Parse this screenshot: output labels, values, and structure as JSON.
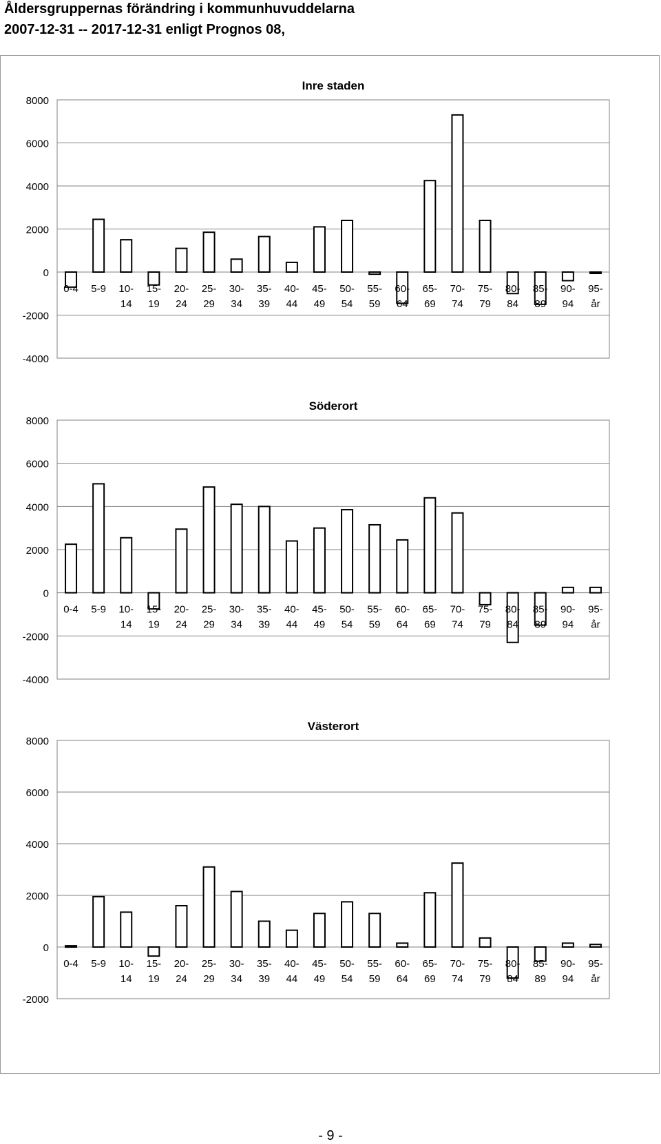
{
  "document": {
    "title_line1": "Åldersgruppernas  förändring  i  kommunhuvuddelarna",
    "title_line2": "2007-12-31 -- 2017-12-31   enligt  Prognos 08,",
    "page_number": "- 9 -"
  },
  "chart_data": [
    {
      "type": "bar",
      "title": "Inre staden",
      "categories": [
        [
          "0-4",
          ""
        ],
        [
          "5-9",
          ""
        ],
        [
          "10-",
          "14"
        ],
        [
          "15-",
          "19"
        ],
        [
          "20-",
          "24"
        ],
        [
          "25-",
          "29"
        ],
        [
          "30-",
          "34"
        ],
        [
          "35-",
          "39"
        ],
        [
          "40-",
          "44"
        ],
        [
          "45-",
          "49"
        ],
        [
          "50-",
          "54"
        ],
        [
          "55-",
          "59"
        ],
        [
          "60-",
          "64"
        ],
        [
          "65-",
          "69"
        ],
        [
          "70-",
          "74"
        ],
        [
          "75-",
          "79"
        ],
        [
          "80-",
          "84"
        ],
        [
          "85-",
          "89"
        ],
        [
          "90-",
          "94"
        ],
        [
          "95-",
          "år"
        ]
      ],
      "values": [
        -700,
        2450,
        1500,
        -600,
        1100,
        1850,
        600,
        1650,
        450,
        2100,
        2400,
        -100,
        -1450,
        4250,
        7300,
        2400,
        -1000,
        -1500,
        -400,
        -50
      ],
      "ylim": [
        -4000,
        8000
      ],
      "yticks": [
        8000,
        6000,
        4000,
        2000,
        0,
        -2000,
        -4000
      ],
      "ytick_labels": [
        "8000",
        "6000",
        "4000",
        "2000",
        "0",
        "-2000",
        "-4000"
      ],
      "grid": true
    },
    {
      "type": "bar",
      "title": "Söderort",
      "categories": [
        [
          "0-4",
          ""
        ],
        [
          "5-9",
          ""
        ],
        [
          "10-",
          "14"
        ],
        [
          "15-",
          "19"
        ],
        [
          "20-",
          "24"
        ],
        [
          "25-",
          "29"
        ],
        [
          "30-",
          "34"
        ],
        [
          "35-",
          "39"
        ],
        [
          "40-",
          "44"
        ],
        [
          "45-",
          "49"
        ],
        [
          "50-",
          "54"
        ],
        [
          "55-",
          "59"
        ],
        [
          "60-",
          "64"
        ],
        [
          "65-",
          "69"
        ],
        [
          "70-",
          "74"
        ],
        [
          "75-",
          "79"
        ],
        [
          "80-",
          "84"
        ],
        [
          "85-",
          "89"
        ],
        [
          "90-",
          "94"
        ],
        [
          "95-",
          "år"
        ]
      ],
      "values": [
        2250,
        5050,
        2550,
        -750,
        2950,
        4900,
        4100,
        4000,
        2400,
        3000,
        3850,
        3150,
        2450,
        4400,
        3700,
        -550,
        -2300,
        -1500,
        250,
        250
      ],
      "ylim": [
        -4000,
        8000
      ],
      "yticks": [
        8000,
        6000,
        4000,
        2000,
        0,
        -2000,
        -4000
      ],
      "ytick_labels": [
        "8000",
        "6000",
        "4000",
        "2000",
        "0",
        "-2000",
        "-4000"
      ],
      "grid": true
    },
    {
      "type": "bar",
      "title": "Västerort",
      "categories": [
        [
          "0-4",
          ""
        ],
        [
          "5-9",
          ""
        ],
        [
          "10-",
          "14"
        ],
        [
          "15-",
          "19"
        ],
        [
          "20-",
          "24"
        ],
        [
          "25-",
          "29"
        ],
        [
          "30-",
          "34"
        ],
        [
          "35-",
          "39"
        ],
        [
          "40-",
          "44"
        ],
        [
          "45-",
          "49"
        ],
        [
          "50-",
          "54"
        ],
        [
          "55-",
          "59"
        ],
        [
          "60-",
          "64"
        ],
        [
          "65-",
          "69"
        ],
        [
          "70-",
          "74"
        ],
        [
          "75-",
          "79"
        ],
        [
          "80-",
          "84"
        ],
        [
          "85-",
          "89"
        ],
        [
          "90-",
          "94"
        ],
        [
          "95-",
          "år"
        ]
      ],
      "values": [
        50,
        1950,
        1350,
        -350,
        1600,
        3100,
        2150,
        1000,
        650,
        1300,
        1750,
        1300,
        150,
        2100,
        3250,
        350,
        -1200,
        -550,
        150,
        100
      ],
      "ylim": [
        -2000,
        8000
      ],
      "yticks": [
        8000,
        6000,
        4000,
        2000,
        0,
        -2000
      ],
      "ytick_labels": [
        "8000",
        "6000",
        "4000",
        "2000",
        "0",
        "-2000"
      ],
      "grid": true
    }
  ]
}
